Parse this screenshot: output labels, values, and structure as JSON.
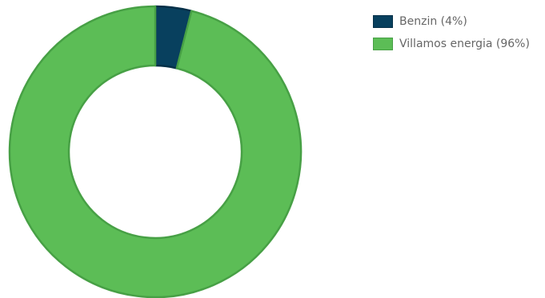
{
  "chart_data": {
    "type": "pie",
    "variant": "doughnut",
    "series": [
      {
        "name": "Benzin (4%)",
        "value": 4,
        "color": "#08405e",
        "border": "#053048"
      },
      {
        "name": "Villamos energia (96%)",
        "value": 96,
        "color": "#5cbd56",
        "border": "#47a045"
      }
    ],
    "legend_position": "top-right"
  }
}
